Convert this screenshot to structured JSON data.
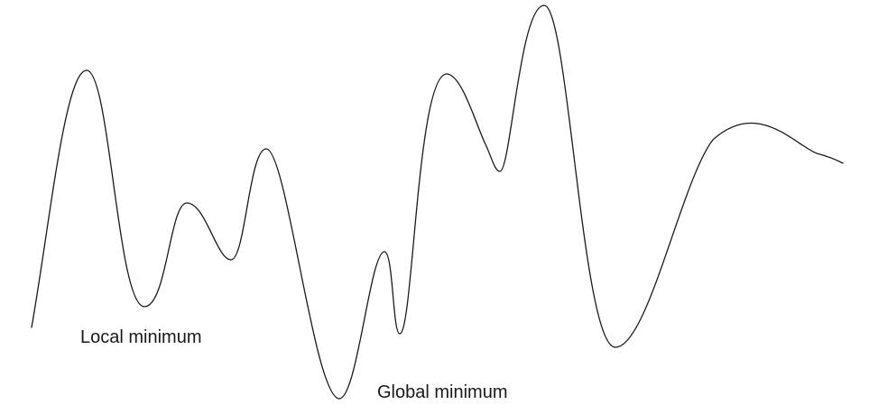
{
  "diagram": {
    "labels": {
      "local_minimum": "Local minimum",
      "global_minimum": "Global minimum"
    },
    "curve_color": "#1a1a1a",
    "background_color": "#ffffff"
  }
}
